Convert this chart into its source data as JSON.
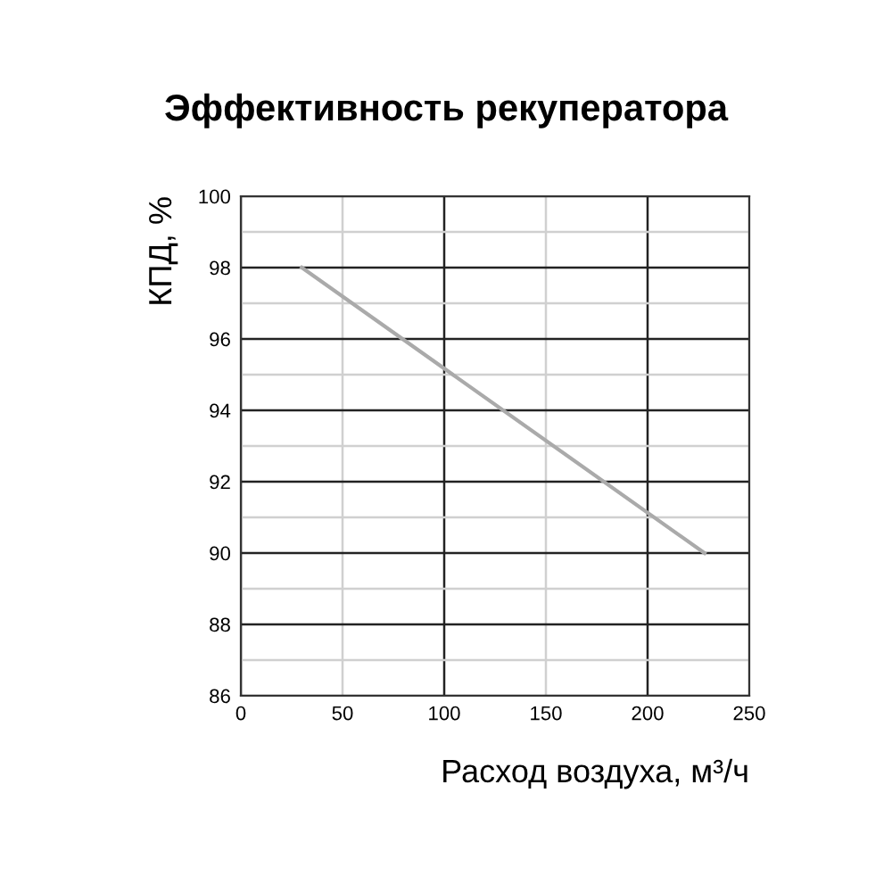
{
  "chart_data": {
    "type": "line",
    "title": "Эффективность рекуператора",
    "xlabel": "Расход воздуха, м³/ч",
    "ylabel": "КПД, %",
    "x": [
      30,
      228
    ],
    "series": [
      {
        "color": "#aaaaaa",
        "values": [
          98,
          90
        ]
      }
    ],
    "xlim": [
      0,
      250
    ],
    "xticks": [
      0,
      50,
      100,
      150,
      200,
      250
    ],
    "ylim": [
      86,
      100
    ],
    "yticks": [
      86,
      88,
      90,
      92,
      94,
      96,
      98,
      100
    ],
    "grid": true,
    "legend": false,
    "marker": "none",
    "line_style": "solid"
  }
}
